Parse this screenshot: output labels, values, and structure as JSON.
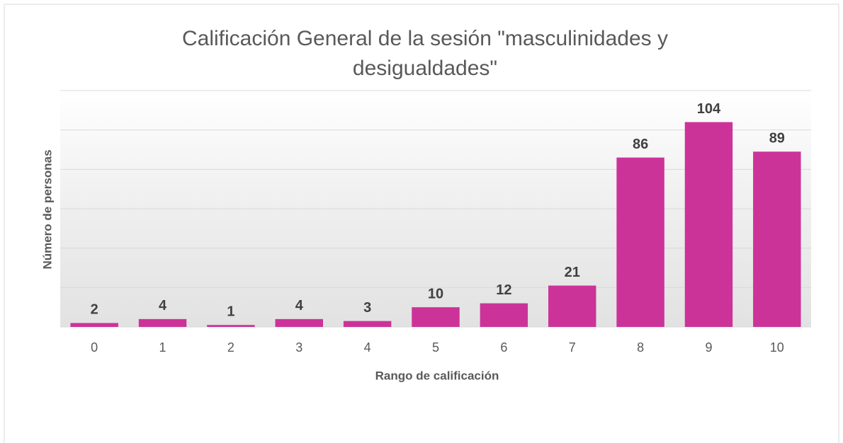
{
  "chart_data": {
    "type": "bar",
    "title": "Calificación General de la sesión \"masculinidades y desigualdades\"",
    "x_label": "Rango de calificación",
    "y_label": "Número de personas",
    "categories": [
      "0",
      "1",
      "2",
      "3",
      "4",
      "5",
      "6",
      "7",
      "8",
      "9",
      "10"
    ],
    "values": [
      2,
      4,
      1,
      4,
      3,
      10,
      12,
      21,
      86,
      104,
      89
    ],
    "color": "#cc3399",
    "ylim": [
      0,
      120
    ],
    "yticks": [
      0,
      20,
      40,
      60,
      80,
      100,
      120
    ],
    "grid": true
  }
}
